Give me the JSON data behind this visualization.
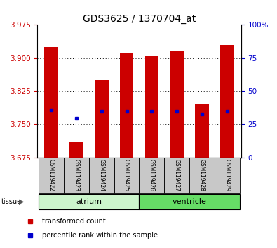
{
  "title": "GDS3625 / 1370704_at",
  "samples": [
    "GSM119422",
    "GSM119423",
    "GSM119424",
    "GSM119425",
    "GSM119426",
    "GSM119427",
    "GSM119428",
    "GSM119429"
  ],
  "transformed_counts": [
    3.925,
    3.71,
    3.85,
    3.91,
    3.905,
    3.915,
    3.795,
    3.93
  ],
  "percentile_values": [
    3.783,
    3.763,
    3.78,
    3.78,
    3.78,
    3.78,
    3.773,
    3.78
  ],
  "baseline": 3.675,
  "ylim_left": [
    3.675,
    3.975
  ],
  "ylim_right": [
    0,
    100
  ],
  "yticks_left": [
    3.675,
    3.75,
    3.825,
    3.9,
    3.975
  ],
  "yticks_right": [
    0,
    25,
    50,
    75,
    100
  ],
  "groups": [
    {
      "label": "atrium",
      "start": 0,
      "end": 4,
      "color": "#ccf5cc"
    },
    {
      "label": "ventricle",
      "start": 4,
      "end": 8,
      "color": "#66dd66"
    }
  ],
  "bar_color": "#cc0000",
  "percentile_color": "#0000cc",
  "label_color_left": "#cc0000",
  "label_color_right": "#0000cc",
  "tick_label_bg": "#c8c8c8",
  "legend_items": [
    {
      "label": "transformed count",
      "color": "#cc0000"
    },
    {
      "label": "percentile rank within the sample",
      "color": "#0000cc"
    }
  ]
}
